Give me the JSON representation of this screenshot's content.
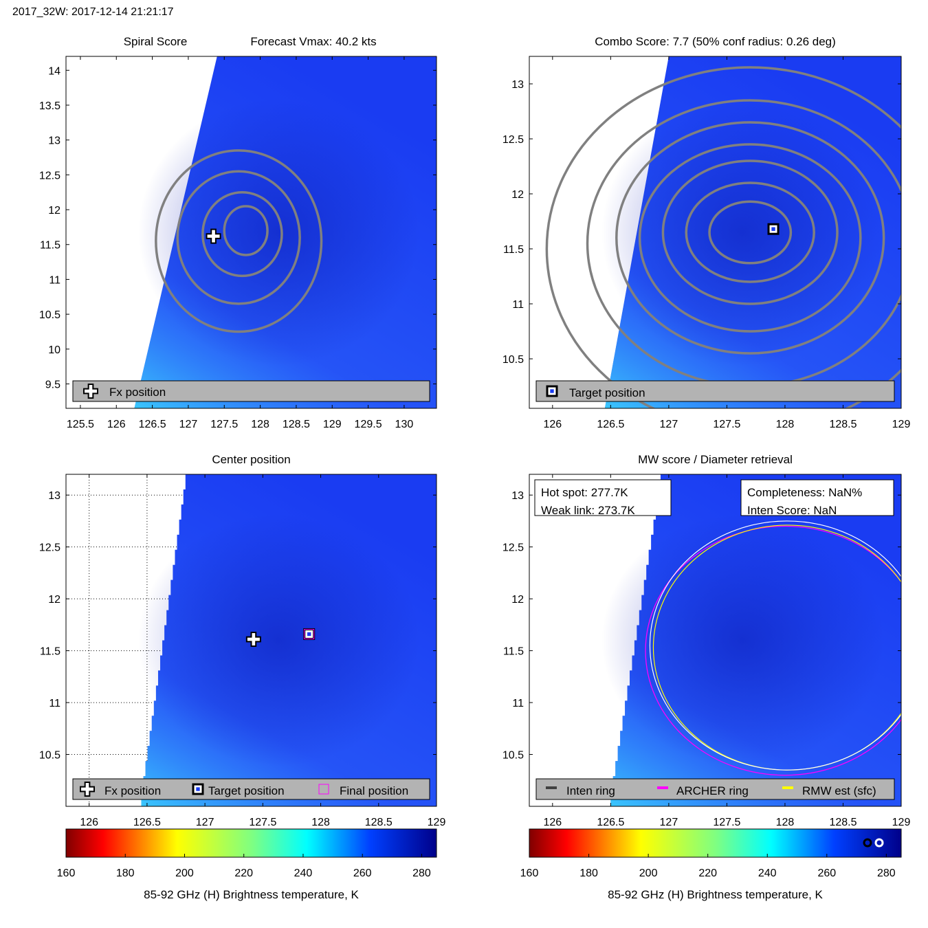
{
  "header": "2017_32W: 2017-12-14 21:21:17",
  "colors": {
    "bg_blue": "#1a3cf2",
    "dark_blue": "#0e22c8",
    "contour": "#808080",
    "legend_bg": "#b3b3b3",
    "archer_ring": "#ff00ff",
    "rmw_ring": "#ffff00",
    "inten_ring": "#ffffff"
  },
  "colorbar": {
    "ticks": [
      160,
      180,
      200,
      220,
      240,
      260,
      280
    ],
    "range": [
      160,
      285
    ],
    "label": "85-92 GHz (H) Brightness temperature, K"
  },
  "chart_data": [
    {
      "type": "heatmap",
      "id": "spiral",
      "title_left": "Spiral Score",
      "title_right": "Forecast Vmax: 40.2 kts",
      "xlim": [
        125.3,
        130.45
      ],
      "ylim": [
        9.15,
        14.2
      ],
      "xticks": [
        125.5,
        126,
        126.5,
        127,
        127.5,
        128,
        128.5,
        129,
        129.5,
        130
      ],
      "yticks": [
        9.5,
        10,
        10.5,
        11,
        11.5,
        12,
        12.5,
        13,
        13.5,
        14
      ],
      "swath_edge": [
        [
          126.25,
          9.15
        ],
        [
          127.4,
          14.2
        ]
      ],
      "fx_position": [
        127.35,
        11.62
      ],
      "contours": [
        {
          "cx": 127.8,
          "cy": 11.7,
          "rx": 0.3,
          "ry": 0.35
        },
        {
          "cx": 127.75,
          "cy": 11.65,
          "rx": 0.55,
          "ry": 0.6
        },
        {
          "cx": 127.7,
          "cy": 11.6,
          "rx": 0.85,
          "ry": 0.95
        },
        {
          "cx": 127.7,
          "cy": 11.55,
          "rx": 1.15,
          "ry": 1.3
        }
      ],
      "legend": [
        "Fx position"
      ]
    },
    {
      "type": "heatmap",
      "id": "combo",
      "title": "Combo Score: 7.7  (50% conf radius: 0.26 deg)",
      "xlim": [
        125.8,
        129.0
      ],
      "ylim": [
        10.05,
        13.25
      ],
      "xticks": [
        126,
        126.5,
        127,
        127.5,
        128,
        128.5,
        129
      ],
      "yticks": [
        10.5,
        11,
        11.5,
        12,
        12.5,
        13
      ],
      "swath_edge": [
        [
          126.45,
          10.05
        ],
        [
          127.0,
          13.25
        ]
      ],
      "target_position": [
        127.9,
        11.68
      ],
      "contours": [
        {
          "cx": 127.7,
          "cy": 11.65,
          "rx": 0.35,
          "ry": 0.28
        },
        {
          "cx": 127.7,
          "cy": 11.65,
          "rx": 0.55,
          "ry": 0.45
        },
        {
          "cx": 127.7,
          "cy": 11.65,
          "rx": 0.75,
          "ry": 0.65
        },
        {
          "cx": 127.7,
          "cy": 11.6,
          "rx": 0.95,
          "ry": 0.85
        },
        {
          "cx": 127.7,
          "cy": 11.6,
          "rx": 1.15,
          "ry": 1.05
        },
        {
          "cx": 127.7,
          "cy": 11.55,
          "rx": 1.4,
          "ry": 1.3
        },
        {
          "cx": 127.7,
          "cy": 11.5,
          "rx": 1.75,
          "ry": 1.65
        }
      ],
      "legend": [
        "Target position"
      ]
    },
    {
      "type": "heatmap",
      "id": "center",
      "title": "Center position",
      "xlim": [
        125.8,
        129.0
      ],
      "ylim": [
        10.0,
        13.2
      ],
      "xticks": [
        126,
        126.5,
        127,
        127.5,
        128,
        128.5,
        129
      ],
      "yticks": [
        10.5,
        11,
        11.5,
        12,
        12.5,
        13
      ],
      "swath_edge": [
        [
          126.45,
          10.0
        ],
        [
          126.85,
          13.2
        ]
      ],
      "fx_position": [
        127.42,
        11.61
      ],
      "target_position": [
        127.9,
        11.66
      ],
      "legend": [
        "Fx position",
        "Target position",
        "Final position"
      ]
    },
    {
      "type": "heatmap",
      "id": "mw",
      "title": "MW score / Diameter retrieval",
      "xlim": [
        125.8,
        129.0
      ],
      "ylim": [
        10.0,
        13.2
      ],
      "xticks": [
        126,
        126.5,
        127,
        127.5,
        128,
        128.5,
        129
      ],
      "yticks": [
        10.5,
        11,
        11.5,
        12,
        12.5,
        13
      ],
      "swath_edge": [
        [
          126.5,
          10.0
        ],
        [
          126.95,
          13.2
        ]
      ],
      "rings": {
        "archer": {
          "cx": 128.0,
          "cy": 11.5,
          "rx": 1.2,
          "ry": 1.2
        },
        "inten": {
          "cx": 128.0,
          "cy": 11.55,
          "rx": 1.18,
          "ry": 1.2
        }
      },
      "info_left": [
        "Hot spot: 277.7K",
        "Weak link: 273.7K"
      ],
      "info_right": [
        "Completeness: NaN%",
        "Inten Score: NaN"
      ],
      "legend": [
        "Inten ring",
        "ARCHER ring",
        "RMW est (sfc)"
      ]
    }
  ]
}
